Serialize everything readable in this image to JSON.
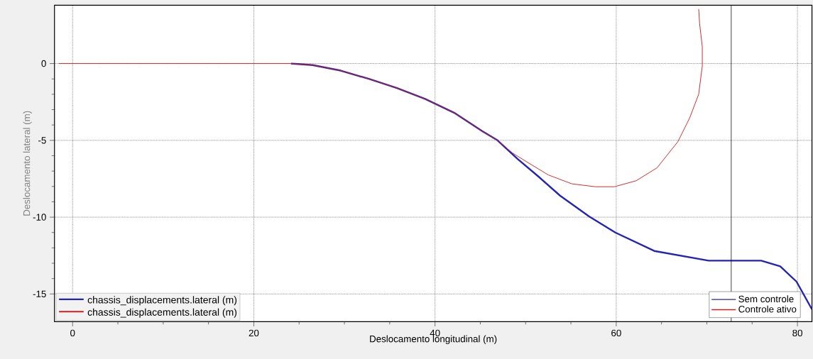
{
  "chart_data": {
    "type": "line",
    "xlabel": "Deslocamento longitudinal (m)",
    "ylabel": "Deslocamento lateral (m)",
    "xlim": [
      -2,
      81.6
    ],
    "ylim": [
      -16.8,
      3.8
    ],
    "xticks": [
      0,
      20,
      40,
      60,
      80
    ],
    "yticks": [
      -15,
      -10,
      -5,
      0
    ],
    "grid": true,
    "legend": "bottom right",
    "series": [
      {
        "name": "Sem controle",
        "color": "#2424b4",
        "x": [
          24.1,
          26.5,
          29.6,
          32.7,
          35.8,
          38.9,
          42.1,
          45.2,
          46.9,
          49.1,
          51.5,
          53.8,
          57.0,
          59.9,
          64.2,
          70.2,
          76.0,
          78.1,
          79.9,
          81.6
        ],
        "values": [
          0,
          -0.1,
          -0.46,
          -1.0,
          -1.6,
          -2.3,
          -3.2,
          -4.4,
          -5.0,
          -6.2,
          -7.4,
          -8.6,
          -9.95,
          -11.0,
          -12.2,
          -12.83,
          -12.83,
          -13.2,
          -14.2,
          -16.0
        ]
      },
      {
        "name": "Controle ativo",
        "color": "#cc2020",
        "x": [
          -1.5,
          24.1,
          26.5,
          29.6,
          32.7,
          35.8,
          38.9,
          42.1,
          45.2,
          46.9,
          48.5,
          49.9,
          52.5,
          55.1,
          57.7,
          59.8,
          62.2,
          64.5,
          66.8,
          68.1,
          69.1,
          69.5,
          69.5,
          69.2,
          69.1
        ],
        "values": [
          0,
          0,
          -0.1,
          -0.46,
          -1.0,
          -1.6,
          -2.3,
          -3.2,
          -4.4,
          -5.0,
          -5.8,
          -6.32,
          -7.25,
          -7.83,
          -8.02,
          -8.02,
          -7.63,
          -6.79,
          -5.09,
          -3.55,
          -2.0,
          -0.15,
          1.08,
          2.62,
          3.55
        ]
      }
    ],
    "ref_lines": [
      {
        "axis": "x",
        "value": 72.7,
        "color": "#000000"
      }
    ],
    "annotations": [
      "chassis_displacements.lateral (m)",
      "chassis_displacements.lateral (m)"
    ]
  }
}
